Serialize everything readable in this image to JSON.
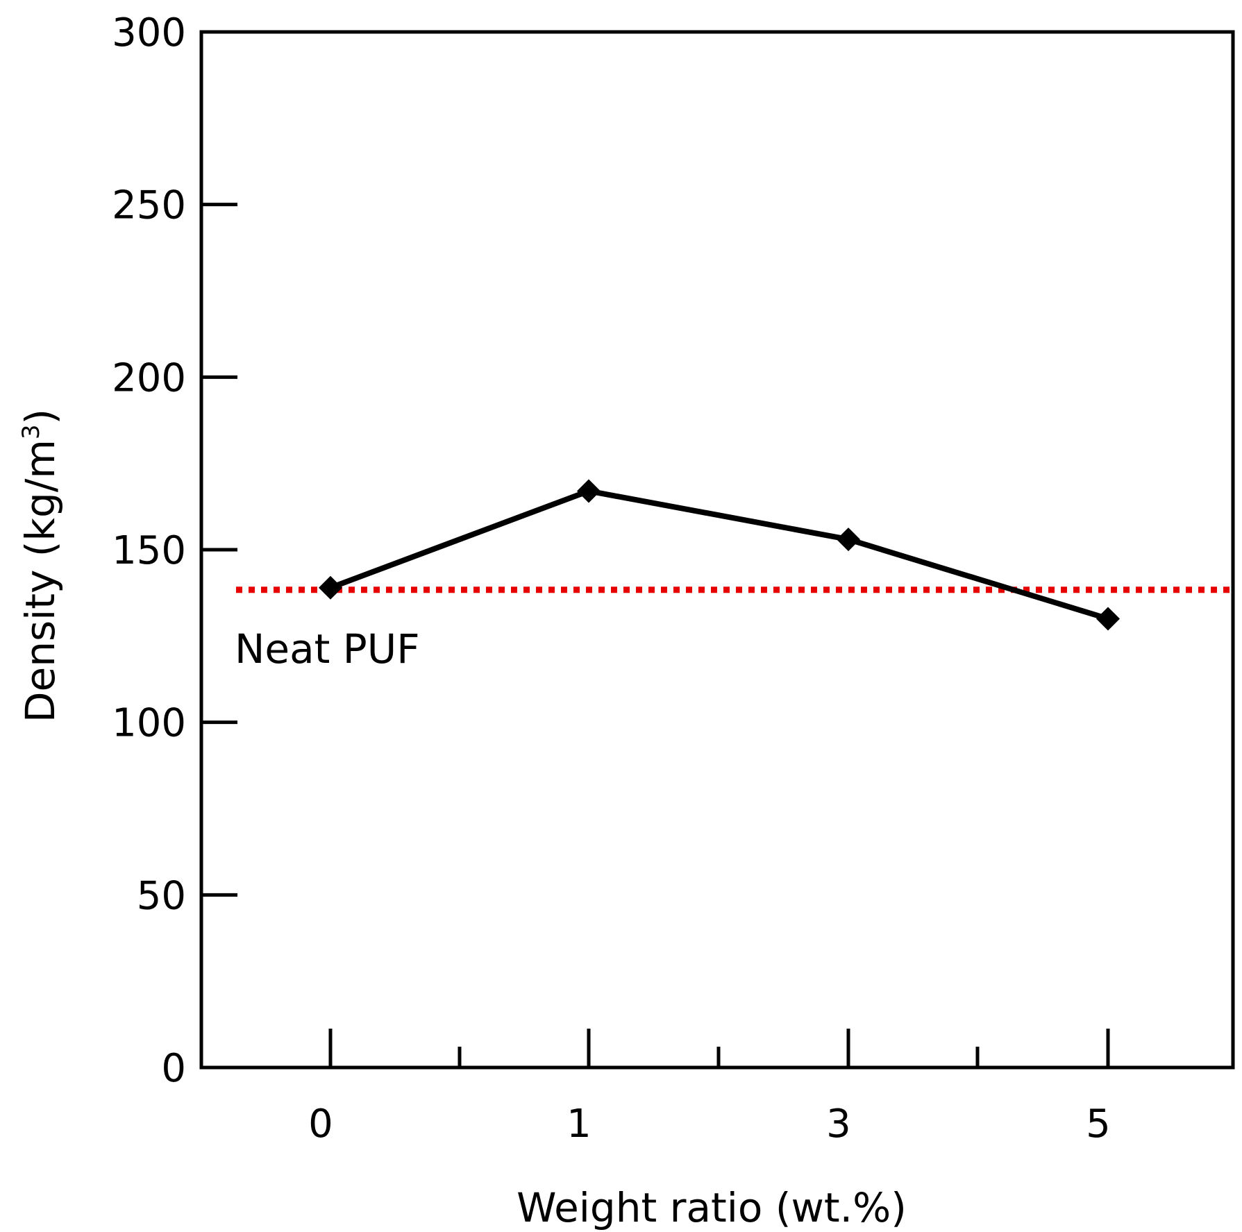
{
  "chart_data": {
    "type": "line",
    "title": "",
    "xlabel": "Weight ratio (wt.%)",
    "ylabel": "Density (kg/m",
    "ylabel_superscript": "3",
    "ylabel_suffix": ")",
    "categories": [
      "0",
      "1",
      "3",
      "5"
    ],
    "series": [
      {
        "name": "Density",
        "values": [
          139,
          167,
          153,
          130
        ],
        "color": "#000000",
        "marker": "diamond"
      }
    ],
    "reference_line": {
      "label": "Neat PUF",
      "value": 139,
      "color": "#e60000",
      "style": "dotted"
    },
    "ylim": [
      0,
      300
    ],
    "yticks": [
      "0",
      "50",
      "100",
      "150",
      "200",
      "250",
      "300"
    ],
    "grid": false,
    "legend": "none"
  }
}
